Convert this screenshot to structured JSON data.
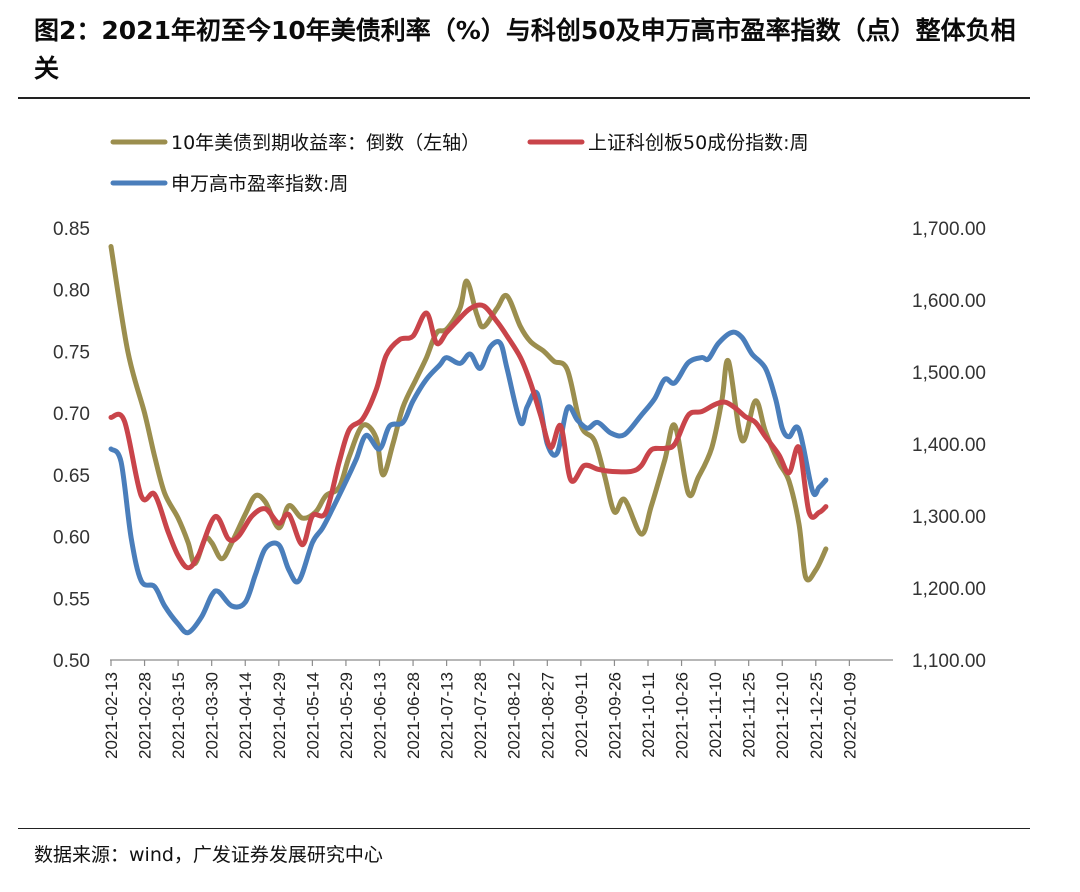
{
  "title": "图2：2021年初至今10年美债利率（%）与科创50及申万高市盈率指数（点）整体负相关",
  "source": "数据来源：wind，广发证券发展研究中心",
  "colors": {
    "olive": "#9b8e4e",
    "red": "#c9444a",
    "blue": "#4a7ebb"
  },
  "chart_data": {
    "type": "line",
    "x_tick_labels": [
      "2021-02-13",
      "2021-02-28",
      "2021-03-15",
      "2021-03-30",
      "2021-04-14",
      "2021-04-29",
      "2021-05-14",
      "2021-05-29",
      "2021-06-13",
      "2021-06-28",
      "2021-07-13",
      "2021-07-28",
      "2021-08-12",
      "2021-08-27",
      "2021-09-11",
      "2021-09-26",
      "2021-10-11",
      "2021-10-26",
      "2021-11-10",
      "2021-11-25",
      "2021-12-10",
      "2021-12-25",
      "2022-01-09"
    ],
    "x_range": [
      0,
      23.3
    ],
    "y_left": {
      "min": 0.5,
      "max": 0.85,
      "ticks": [
        "0.50",
        "0.55",
        "0.60",
        "0.65",
        "0.70",
        "0.75",
        "0.80",
        "0.85"
      ]
    },
    "y_right": {
      "min": 1100,
      "max": 1700,
      "ticks": [
        "1,100.00",
        "1,200.00",
        "1,300.00",
        "1,400.00",
        "1,500.00",
        "1,600.00",
        "1,700.00"
      ]
    },
    "series": [
      {
        "name": "10年美债到期收益率：倒数（左轴）",
        "axis": "left",
        "color": "#9b8e4e",
        "points": [
          [
            0,
            0.835
          ],
          [
            0.5,
            0.75
          ],
          [
            1,
            0.7
          ],
          [
            1.3,
            0.665
          ],
          [
            1.6,
            0.635
          ],
          [
            2,
            0.615
          ],
          [
            2.3,
            0.595
          ],
          [
            2.5,
            0.578
          ],
          [
            2.8,
            0.598
          ],
          [
            3,
            0.595
          ],
          [
            3.3,
            0.582
          ],
          [
            3.6,
            0.595
          ],
          [
            4,
            0.618
          ],
          [
            4.3,
            0.633
          ],
          [
            4.6,
            0.628
          ],
          [
            5,
            0.607
          ],
          [
            5.3,
            0.625
          ],
          [
            5.7,
            0.615
          ],
          [
            6.1,
            0.62
          ],
          [
            6.4,
            0.633
          ],
          [
            6.8,
            0.64
          ],
          [
            7.1,
            0.665
          ],
          [
            7.5,
            0.69
          ],
          [
            7.9,
            0.68
          ],
          [
            8.1,
            0.65
          ],
          [
            8.4,
            0.675
          ],
          [
            8.7,
            0.705
          ],
          [
            9.1,
            0.728
          ],
          [
            9.4,
            0.745
          ],
          [
            9.7,
            0.765
          ],
          [
            10,
            0.768
          ],
          [
            10.4,
            0.785
          ],
          [
            10.6,
            0.807
          ],
          [
            10.9,
            0.78
          ],
          [
            11.1,
            0.77
          ],
          [
            11.5,
            0.785
          ],
          [
            11.8,
            0.795
          ],
          [
            12.2,
            0.77
          ],
          [
            12.5,
            0.758
          ],
          [
            12.9,
            0.75
          ],
          [
            13.2,
            0.742
          ],
          [
            13.6,
            0.735
          ],
          [
            14,
            0.69
          ],
          [
            14.4,
            0.678
          ],
          [
            14.7,
            0.65
          ],
          [
            15,
            0.62
          ],
          [
            15.3,
            0.63
          ],
          [
            15.8,
            0.602
          ],
          [
            16.1,
            0.625
          ],
          [
            16.5,
            0.662
          ],
          [
            16.8,
            0.69
          ],
          [
            17.2,
            0.635
          ],
          [
            17.5,
            0.648
          ],
          [
            17.9,
            0.672
          ],
          [
            18.2,
            0.71
          ],
          [
            18.4,
            0.742
          ],
          [
            18.8,
            0.678
          ],
          [
            19.2,
            0.71
          ],
          [
            19.5,
            0.685
          ],
          [
            19.9,
            0.66
          ],
          [
            20.2,
            0.645
          ],
          [
            20.5,
            0.61
          ],
          [
            20.7,
            0.567
          ],
          [
            21,
            0.573
          ],
          [
            21.3,
            0.59
          ]
        ]
      },
      {
        "name": "上证科创板50成份指数:周",
        "axis": "right",
        "color": "#c9444a",
        "points": [
          [
            0,
            1437
          ],
          [
            0.4,
            1432
          ],
          [
            0.9,
            1328
          ],
          [
            1.3,
            1330
          ],
          [
            1.7,
            1278
          ],
          [
            2,
            1245
          ],
          [
            2.3,
            1228
          ],
          [
            2.6,
            1245
          ],
          [
            3.1,
            1299
          ],
          [
            3.5,
            1268
          ],
          [
            3.8,
            1272
          ],
          [
            4.2,
            1300
          ],
          [
            4.6,
            1310
          ],
          [
            5,
            1290
          ],
          [
            5.3,
            1302
          ],
          [
            5.7,
            1260
          ],
          [
            6,
            1300
          ],
          [
            6.4,
            1305
          ],
          [
            6.8,
            1375
          ],
          [
            7.1,
            1420
          ],
          [
            7.5,
            1435
          ],
          [
            7.9,
            1475
          ],
          [
            8.2,
            1523
          ],
          [
            8.6,
            1545
          ],
          [
            9,
            1550
          ],
          [
            9.4,
            1582
          ],
          [
            9.7,
            1540
          ],
          [
            10,
            1555
          ],
          [
            10.3,
            1570
          ],
          [
            10.7,
            1588
          ],
          [
            11.1,
            1592
          ],
          [
            11.5,
            1570
          ],
          [
            11.8,
            1550
          ],
          [
            12.2,
            1520
          ],
          [
            12.5,
            1485
          ],
          [
            12.8,
            1440
          ],
          [
            13.1,
            1395
          ],
          [
            13.4,
            1425
          ],
          [
            13.7,
            1350
          ],
          [
            14.1,
            1370
          ],
          [
            14.5,
            1365
          ],
          [
            14.9,
            1362
          ],
          [
            15.5,
            1362
          ],
          [
            15.8,
            1370
          ],
          [
            16.1,
            1392
          ],
          [
            16.5,
            1394
          ],
          [
            16.8,
            1400
          ],
          [
            17.2,
            1440
          ],
          [
            17.6,
            1445
          ],
          [
            18,
            1455
          ],
          [
            18.3,
            1458
          ],
          [
            18.6,
            1450
          ],
          [
            18.9,
            1438
          ],
          [
            19.2,
            1430
          ],
          [
            19.5,
            1410
          ],
          [
            19.9,
            1385
          ],
          [
            20.2,
            1360
          ],
          [
            20.5,
            1395
          ],
          [
            20.8,
            1305
          ],
          [
            21.1,
            1305
          ],
          [
            21.3,
            1313
          ]
        ]
      },
      {
        "name": "申万高市盈率指数:周",
        "axis": "right",
        "color": "#4a7ebb",
        "points": [
          [
            0,
            1393
          ],
          [
            0.3,
            1375
          ],
          [
            0.6,
            1270
          ],
          [
            0.9,
            1210
          ],
          [
            1.3,
            1202
          ],
          [
            1.6,
            1175
          ],
          [
            2,
            1150
          ],
          [
            2.3,
            1138
          ],
          [
            2.7,
            1160
          ],
          [
            3,
            1190
          ],
          [
            3.2,
            1195
          ],
          [
            3.6,
            1175
          ],
          [
            4,
            1180
          ],
          [
            4.3,
            1218
          ],
          [
            4.6,
            1255
          ],
          [
            5,
            1260
          ],
          [
            5.3,
            1225
          ],
          [
            5.6,
            1210
          ],
          [
            6,
            1263
          ],
          [
            6.3,
            1283
          ],
          [
            6.6,
            1310
          ],
          [
            7,
            1348
          ],
          [
            7.3,
            1378
          ],
          [
            7.6,
            1412
          ],
          [
            8,
            1393
          ],
          [
            8.3,
            1425
          ],
          [
            8.7,
            1430
          ],
          [
            9,
            1460
          ],
          [
            9.4,
            1490
          ],
          [
            9.8,
            1510
          ],
          [
            10,
            1520
          ],
          [
            10.4,
            1512
          ],
          [
            10.7,
            1525
          ],
          [
            11,
            1505
          ],
          [
            11.3,
            1535
          ],
          [
            11.6,
            1540
          ],
          [
            11.8,
            1505
          ],
          [
            12.2,
            1430
          ],
          [
            12.4,
            1452
          ],
          [
            12.7,
            1470
          ],
          [
            13,
            1400
          ],
          [
            13.3,
            1388
          ],
          [
            13.6,
            1450
          ],
          [
            13.9,
            1433
          ],
          [
            14.2,
            1422
          ],
          [
            14.5,
            1430
          ],
          [
            14.9,
            1415
          ],
          [
            15.3,
            1413
          ],
          [
            15.8,
            1440
          ],
          [
            16.2,
            1463
          ],
          [
            16.5,
            1490
          ],
          [
            16.8,
            1485
          ],
          [
            17.2,
            1513
          ],
          [
            17.6,
            1520
          ],
          [
            17.8,
            1518
          ],
          [
            18.1,
            1540
          ],
          [
            18.5,
            1555
          ],
          [
            18.8,
            1548
          ],
          [
            19.1,
            1525
          ],
          [
            19.5,
            1505
          ],
          [
            19.8,
            1463
          ],
          [
            20,
            1422
          ],
          [
            20.2,
            1410
          ],
          [
            20.5,
            1420
          ],
          [
            20.9,
            1335
          ],
          [
            21.1,
            1340
          ],
          [
            21.3,
            1350
          ]
        ]
      }
    ]
  }
}
